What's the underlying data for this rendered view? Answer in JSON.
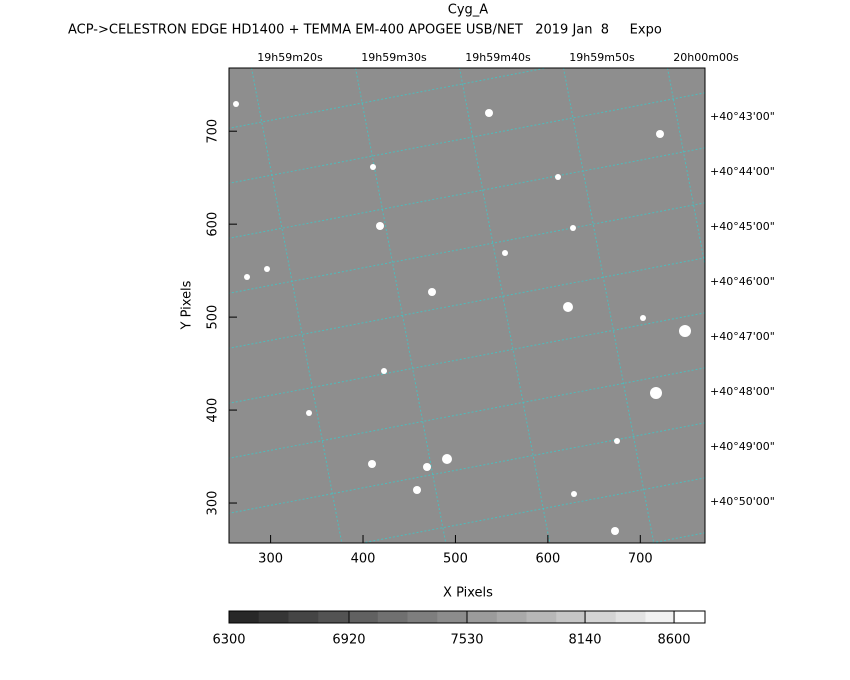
{
  "chart_data": {
    "type": "image",
    "title": "Cyg_A",
    "subtitle": "ACP->CELESTRON EDGE HD1400 + TEMMA EM-400 APOGEE USB/NET   2019 Jan  8     Expo",
    "x_label": "X Pixels",
    "y_label": "Y Pixels",
    "xlim": [
      255,
      770
    ],
    "xticks": [
      300,
      400,
      500,
      600,
      700
    ],
    "ylim": [
      257,
      768
    ],
    "yticks": [
      300,
      400,
      500,
      600,
      700
    ],
    "ra_labels": [
      "19h59m20s",
      "19h59m30s",
      "19h59m40s",
      "19h59m50s",
      "20h00m00s"
    ],
    "dec_labels": [
      "+40°43'00\"",
      "+40°44'00\"",
      "+40°45'00\"",
      "+40°46'00\"",
      "+40°47'00\"",
      "+40°48'00\"",
      "+40°49'00\"",
      "+40°50'00\""
    ],
    "clim": [
      6300,
      8760
    ],
    "cticks": [
      6300,
      6920,
      7530,
      8140,
      8600
    ]
  }
}
